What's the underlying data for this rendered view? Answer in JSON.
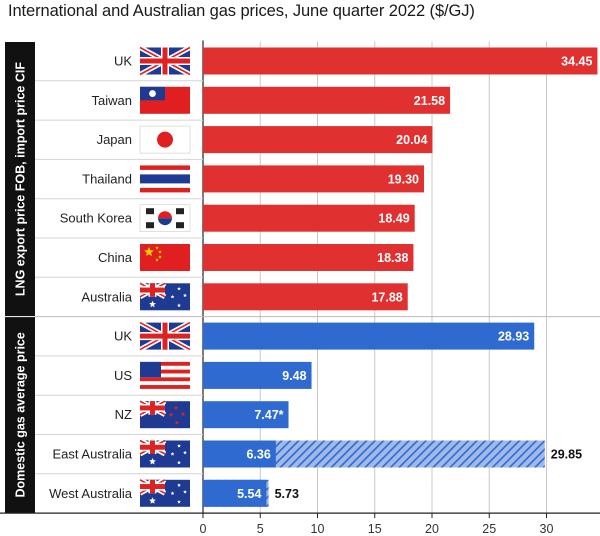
{
  "chart_data": {
    "type": "bar",
    "orientation": "horizontal",
    "title": "International and Australian gas prices, June quarter 2022 ($/GJ)",
    "xlim": [
      0,
      35
    ],
    "x_ticks": [
      0,
      5,
      10,
      15,
      20,
      25,
      30
    ],
    "groups": [
      {
        "label": "LNG export price FOB, import price CIF",
        "color": "#e03030",
        "categories": [
          "UK",
          "Taiwan",
          "Japan",
          "Thailand",
          "South Korea",
          "China",
          "Australia"
        ],
        "values": [
          34.45,
          21.58,
          20.04,
          19.3,
          18.49,
          18.38,
          17.88
        ],
        "value_labels": [
          "34.45",
          "21.58",
          "20.04",
          "19.30",
          "18.49",
          "18.38",
          "17.88"
        ]
      },
      {
        "label": "Domestic gas average price",
        "color": "#2f6ad0",
        "categories": [
          "UK",
          "US",
          "NZ",
          "East Australia",
          "West Australia"
        ],
        "values": [
          28.93,
          9.48,
          7.47,
          6.36,
          5.54
        ],
        "value_labels": [
          "28.93",
          "9.48",
          "7.47*",
          "6.36",
          "5.54"
        ],
        "range_high": [
          null,
          null,
          null,
          29.85,
          5.73
        ],
        "range_high_labels": [
          null,
          null,
          null,
          "29.85",
          "5.73"
        ]
      }
    ],
    "flags": [
      "uk-flag",
      "taiwan-flag",
      "japan-flag",
      "thailand-flag",
      "south-korea-flag",
      "china-flag",
      "australia-flag",
      "uk-flag",
      "us-flag",
      "nz-flag",
      "australia-flag",
      "australia-flag"
    ]
  }
}
